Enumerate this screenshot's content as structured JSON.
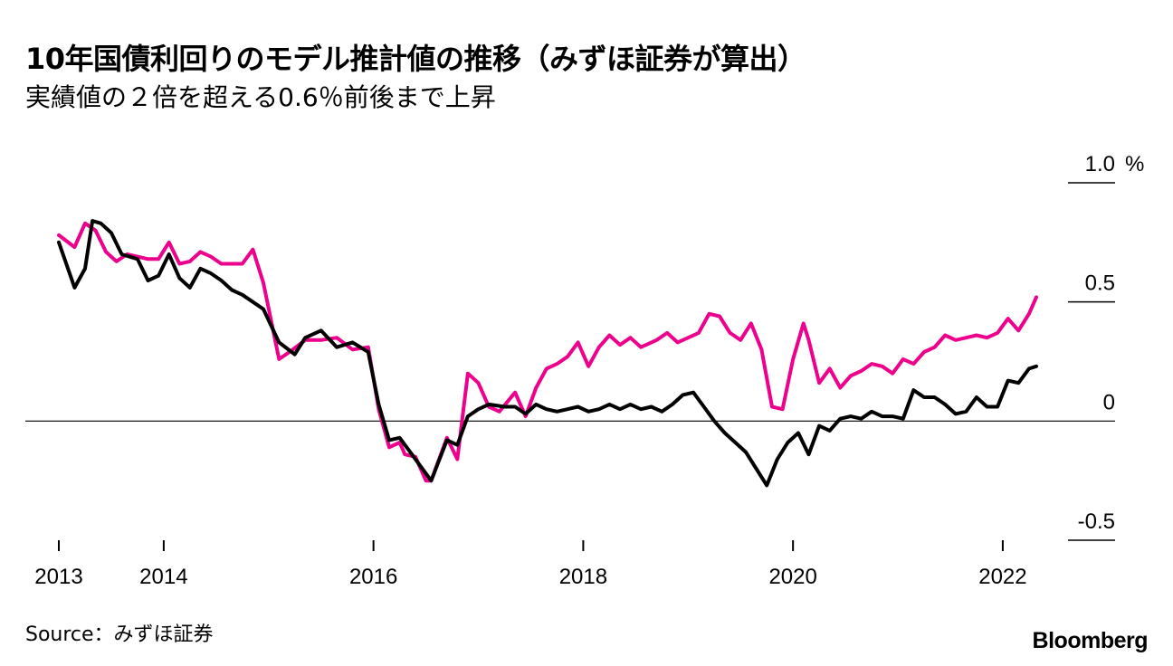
{
  "title": "10年国債利回りのモデル推計値の推移（みずほ証券が算出）",
  "subtitle": "実績値の２倍を超える0.6％前後まで上昇",
  "source": "Source：みずほ証券",
  "brand": "Bloomberg",
  "colors": {
    "model": "#ec008c",
    "actual": "#000000"
  },
  "chart_data": {
    "type": "line",
    "title": "10年国債利回りのモデル推計値の推移（みずほ証券が算出）",
    "ylabel": "%",
    "ylim": [
      -0.5,
      1.0
    ],
    "xlim": [
      2012.9,
      2022.35
    ],
    "y_ticks": [
      {
        "value": 1.0,
        "label": "1.0"
      },
      {
        "value": 0.5,
        "label": "0.5"
      },
      {
        "value": 0,
        "label": "0"
      },
      {
        "value": -0.5,
        "label": "-0.5"
      }
    ],
    "y_unit": "%",
    "x_ticks": [
      2013,
      2014,
      2016,
      2018,
      2020,
      2022
    ],
    "series": [
      {
        "name": "モデル推計値",
        "color": "#ec008c",
        "x": [
          2013.0,
          2013.15,
          2013.25,
          2013.35,
          2013.45,
          2013.55,
          2013.65,
          2013.75,
          2013.85,
          2013.95,
          2014.05,
          2014.15,
          2014.25,
          2014.35,
          2014.45,
          2014.55,
          2014.65,
          2014.75,
          2014.85,
          2014.95,
          2015.1,
          2015.2,
          2015.35,
          2015.5,
          2015.65,
          2015.8,
          2015.95,
          2016.05,
          2016.15,
          2016.25,
          2016.3,
          2016.4,
          2016.5,
          2016.55,
          2016.7,
          2016.8,
          2016.9,
          2017.0,
          2017.1,
          2017.2,
          2017.35,
          2017.45,
          2017.55,
          2017.65,
          2017.75,
          2017.85,
          2017.95,
          2018.05,
          2018.15,
          2018.25,
          2018.35,
          2018.45,
          2018.55,
          2018.7,
          2018.8,
          2018.9,
          2019.0,
          2019.1,
          2019.2,
          2019.3,
          2019.4,
          2019.5,
          2019.6,
          2019.7,
          2019.8,
          2019.9,
          2020.0,
          2020.1,
          2020.15,
          2020.25,
          2020.35,
          2020.45,
          2020.55,
          2020.65,
          2020.75,
          2020.85,
          2020.95,
          2021.05,
          2021.15,
          2021.25,
          2021.35,
          2021.45,
          2021.55,
          2021.65,
          2021.75,
          2021.85,
          2021.95,
          2022.05,
          2022.15,
          2022.25,
          2022.32
        ],
        "values": [
          0.78,
          0.73,
          0.83,
          0.8,
          0.71,
          0.67,
          0.7,
          0.69,
          0.68,
          0.68,
          0.75,
          0.66,
          0.67,
          0.71,
          0.69,
          0.66,
          0.66,
          0.66,
          0.72,
          0.58,
          0.26,
          0.29,
          0.34,
          0.34,
          0.35,
          0.3,
          0.31,
          0.05,
          -0.11,
          -0.09,
          -0.14,
          -0.15,
          -0.25,
          -0.25,
          -0.07,
          -0.16,
          0.2,
          0.16,
          0.06,
          0.04,
          0.12,
          0.02,
          0.14,
          0.22,
          0.24,
          0.27,
          0.33,
          0.23,
          0.31,
          0.36,
          0.32,
          0.35,
          0.31,
          0.34,
          0.37,
          0.33,
          0.35,
          0.37,
          0.45,
          0.44,
          0.37,
          0.34,
          0.41,
          0.3,
          0.06,
          0.05,
          0.26,
          0.41,
          0.34,
          0.16,
          0.22,
          0.14,
          0.19,
          0.21,
          0.24,
          0.23,
          0.2,
          0.26,
          0.24,
          0.29,
          0.31,
          0.36,
          0.34,
          0.35,
          0.36,
          0.35,
          0.37,
          0.43,
          0.38,
          0.45,
          0.52
        ]
      },
      {
        "name": "実績値",
        "color": "#000000",
        "x": [
          2013.0,
          2013.15,
          2013.25,
          2013.32,
          2013.4,
          2013.5,
          2013.6,
          2013.75,
          2013.85,
          2013.95,
          2014.05,
          2014.15,
          2014.25,
          2014.35,
          2014.45,
          2014.55,
          2014.65,
          2014.75,
          2014.85,
          2014.95,
          2015.1,
          2015.25,
          2015.35,
          2015.5,
          2015.65,
          2015.8,
          2015.95,
          2016.05,
          2016.15,
          2016.25,
          2016.35,
          2016.45,
          2016.55,
          2016.7,
          2016.8,
          2016.9,
          2017.0,
          2017.1,
          2017.25,
          2017.35,
          2017.45,
          2017.55,
          2017.65,
          2017.75,
          2017.85,
          2017.95,
          2018.05,
          2018.15,
          2018.25,
          2018.35,
          2018.45,
          2018.55,
          2018.65,
          2018.75,
          2018.85,
          2018.95,
          2019.05,
          2019.15,
          2019.25,
          2019.35,
          2019.45,
          2019.55,
          2019.65,
          2019.75,
          2019.85,
          2019.95,
          2020.05,
          2020.15,
          2020.25,
          2020.35,
          2020.45,
          2020.55,
          2020.65,
          2020.75,
          2020.85,
          2020.95,
          2021.05,
          2021.15,
          2021.25,
          2021.35,
          2021.45,
          2021.55,
          2021.65,
          2021.75,
          2021.85,
          2021.95,
          2022.05,
          2022.15,
          2022.25,
          2022.32
        ],
        "values": [
          0.75,
          0.56,
          0.64,
          0.84,
          0.83,
          0.79,
          0.7,
          0.68,
          0.59,
          0.61,
          0.7,
          0.6,
          0.56,
          0.64,
          0.62,
          0.59,
          0.55,
          0.53,
          0.5,
          0.47,
          0.33,
          0.28,
          0.35,
          0.38,
          0.31,
          0.33,
          0.29,
          0.07,
          -0.08,
          -0.07,
          -0.13,
          -0.19,
          -0.25,
          -0.08,
          -0.1,
          0.02,
          0.05,
          0.07,
          0.06,
          0.06,
          0.03,
          0.07,
          0.05,
          0.04,
          0.05,
          0.06,
          0.04,
          0.05,
          0.07,
          0.05,
          0.07,
          0.05,
          0.06,
          0.04,
          0.07,
          0.11,
          0.12,
          0.06,
          0.0,
          -0.05,
          -0.09,
          -0.13,
          -0.2,
          -0.27,
          -0.16,
          -0.09,
          -0.05,
          -0.14,
          -0.02,
          -0.04,
          0.01,
          0.02,
          0.01,
          0.04,
          0.02,
          0.02,
          0.01,
          0.13,
          0.1,
          0.1,
          0.07,
          0.03,
          0.04,
          0.1,
          0.06,
          0.06,
          0.17,
          0.16,
          0.22,
          0.23
        ]
      }
    ]
  }
}
